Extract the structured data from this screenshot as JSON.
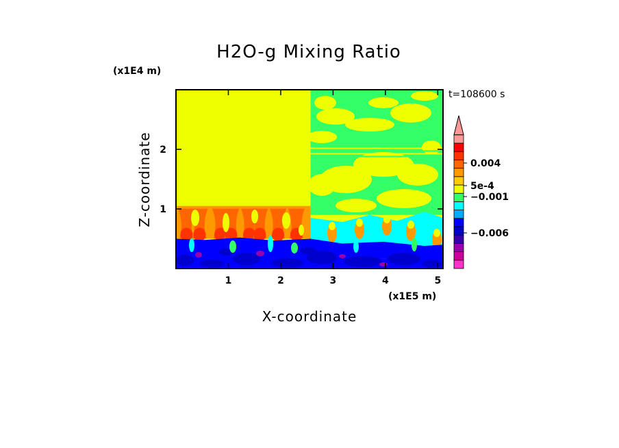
{
  "chart_data": {
    "type": "heatmap",
    "title": "H2O-g Mixing Ratio",
    "xlabel": "X-coordinate",
    "ylabel": "Z-coordinate",
    "x_unit": "(x1E5 m)",
    "y_unit": "(x1E4 m)",
    "timestamp": "t=108600 s",
    "xlim": [
      0,
      5.1
    ],
    "ylim": [
      0,
      3.0
    ],
    "x_ticks": [
      {
        "value": 1,
        "label": "1"
      },
      {
        "value": 2,
        "label": "2"
      },
      {
        "value": 3,
        "label": "3"
      },
      {
        "value": 4,
        "label": "4"
      },
      {
        "value": 5,
        "label": "5"
      }
    ],
    "y_ticks": [
      {
        "value": 1,
        "label": "1"
      },
      {
        "value": 2,
        "label": "2"
      }
    ],
    "colorbar": {
      "colors_bottom_to_top": [
        "#ff33cc",
        "#cc0099",
        "#9900aa",
        "#3300aa",
        "#0000cc",
        "#0000ff",
        "#00aaff",
        "#00ffff",
        "#33ff66",
        "#eeff00",
        "#ffcc00",
        "#ff9900",
        "#ff6600",
        "#ff3300",
        "#ff0000",
        "#ff9999"
      ],
      "extend_top": true,
      "labels": [
        {
          "value": "0.004",
          "label": "0.004"
        },
        {
          "value": "5e-4",
          "label": "5e-4"
        },
        {
          "value": "-0.001",
          "label": "−0.001"
        },
        {
          "value": "-0.006",
          "label": "−0.006"
        }
      ]
    },
    "regions": [
      {
        "name": "background",
        "color": "#eeff00",
        "x": [
          0,
          5.1
        ],
        "z": [
          0,
          3.0
        ]
      },
      {
        "name": "upper-left-uniform",
        "color": "#eeff00",
        "x": [
          0,
          2.57
        ],
        "z": [
          1.0,
          3.0
        ]
      },
      {
        "name": "upper-right-green-patches",
        "color": "#33ff66",
        "x": [
          2.57,
          5.1
        ],
        "z": [
          0.9,
          3.0
        ]
      },
      {
        "name": "left-orange-convective-layer",
        "color": "#ff9900",
        "x": [
          0,
          2.57
        ],
        "z": [
          0.5,
          1.05
        ]
      },
      {
        "name": "left-red-cores",
        "color": "#ff6600",
        "x": [
          0,
          2.57
        ],
        "z": [
          0.5,
          0.85
        ]
      },
      {
        "name": "right-cyan-layer",
        "color": "#00ffff",
        "x": [
          2.57,
          5.1
        ],
        "z": [
          0.3,
          0.9
        ]
      },
      {
        "name": "lower-blue-boundary-layer",
        "color": "#0000ff",
        "x": [
          0,
          5.1
        ],
        "z": [
          0,
          0.5
        ]
      },
      {
        "name": "lower-dark-blue-patches",
        "color": "#0000cc",
        "x": [
          0,
          5.1
        ],
        "z": [
          0,
          0.3
        ]
      }
    ]
  }
}
